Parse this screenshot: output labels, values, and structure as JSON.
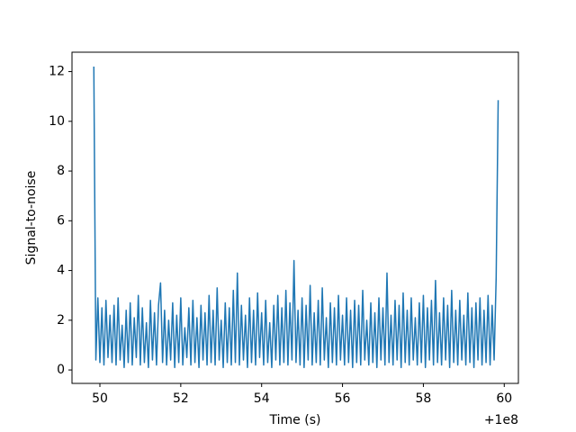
{
  "chart_data": {
    "type": "line",
    "xlabel": "Time (s)",
    "ylabel": "Signal-to-noise",
    "x_offset_label": "+1e8",
    "x": [
      100000049.85,
      100000049.9,
      100000049.95,
      100000050,
      100000050.05,
      100000050.1,
      100000050.15,
      100000050.2,
      100000050.25,
      100000050.3,
      100000050.35,
      100000050.4,
      100000050.45,
      100000050.5,
      100000050.55,
      100000050.6,
      100000050.65,
      100000050.7,
      100000050.75,
      100000050.8,
      100000050.85,
      100000050.9,
      100000050.95,
      100000051,
      100000051.05,
      100000051.1,
      100000051.15,
      100000051.2,
      100000051.25,
      100000051.3,
      100000051.35,
      100000051.4,
      100000051.45,
      100000051.5,
      100000051.55,
      100000051.6,
      100000051.65,
      100000051.7,
      100000051.75,
      100000051.8,
      100000051.85,
      100000051.9,
      100000051.95,
      100000052,
      100000052.05,
      100000052.1,
      100000052.15,
      100000052.2,
      100000052.25,
      100000052.3,
      100000052.35,
      100000052.4,
      100000052.45,
      100000052.5,
      100000052.55,
      100000052.6,
      100000052.65,
      100000052.7,
      100000052.75,
      100000052.8,
      100000052.85,
      100000052.9,
      100000052.95,
      100000053,
      100000053.05,
      100000053.1,
      100000053.15,
      100000053.2,
      100000053.25,
      100000053.3,
      100000053.35,
      100000053.4,
      100000053.45,
      100000053.5,
      100000053.55,
      100000053.6,
      100000053.65,
      100000053.7,
      100000053.75,
      100000053.8,
      100000053.85,
      100000053.9,
      100000053.95,
      100000054,
      100000054.05,
      100000054.1,
      100000054.15,
      100000054.2,
      100000054.25,
      100000054.3,
      100000054.35,
      100000054.4,
      100000054.45,
      100000054.5,
      100000054.55,
      100000054.6,
      100000054.65,
      100000054.7,
      100000054.75,
      100000054.8,
      100000054.85,
      100000054.9,
      100000054.95,
      100000055,
      100000055.05,
      100000055.1,
      100000055.15,
      100000055.2,
      100000055.25,
      100000055.3,
      100000055.35,
      100000055.4,
      100000055.45,
      100000055.5,
      100000055.55,
      100000055.6,
      100000055.65,
      100000055.7,
      100000055.75,
      100000055.8,
      100000055.85,
      100000055.9,
      100000055.95,
      100000056,
      100000056.05,
      100000056.1,
      100000056.15,
      100000056.2,
      100000056.25,
      100000056.3,
      100000056.35,
      100000056.4,
      100000056.45,
      100000056.5,
      100000056.55,
      100000056.6,
      100000056.65,
      100000056.7,
      100000056.75,
      100000056.8,
      100000056.85,
      100000056.9,
      100000056.95,
      100000057,
      100000057.05,
      100000057.1,
      100000057.15,
      100000057.2,
      100000057.25,
      100000057.3,
      100000057.35,
      100000057.4,
      100000057.45,
      100000057.5,
      100000057.55,
      100000057.6,
      100000057.65,
      100000057.7,
      100000057.75,
      100000057.8,
      100000057.85,
      100000057.9,
      100000057.95,
      100000058,
      100000058.05,
      100000058.1,
      100000058.15,
      100000058.2,
      100000058.25,
      100000058.3,
      100000058.35,
      100000058.4,
      100000058.45,
      100000058.5,
      100000058.55,
      100000058.6,
      100000058.65,
      100000058.7,
      100000058.75,
      100000058.8,
      100000058.85,
      100000058.9,
      100000058.95,
      100000059,
      100000059.05,
      100000059.1,
      100000059.15,
      100000059.2,
      100000059.25,
      100000059.3,
      100000059.35,
      100000059.4,
      100000059.45,
      100000059.5,
      100000059.55,
      100000059.6,
      100000059.65,
      100000059.7,
      100000059.75,
      100000059.8,
      100000059.85
    ],
    "series": [
      {
        "color": "#1f77b4",
        "values": [
          12.2,
          0.4,
          2.9,
          0.3,
          2.5,
          0.2,
          2.8,
          0.5,
          2.2,
          0.3,
          2.6,
          0.2,
          2.9,
          0.4,
          1.8,
          0.1,
          2.4,
          0.3,
          2.7,
          0.2,
          2.1,
          0.5,
          3.0,
          0.2,
          2.5,
          0.3,
          1.9,
          0.1,
          2.8,
          0.4,
          2.3,
          0.2,
          2.6,
          3.5,
          0.3,
          2.4,
          0.2,
          2.0,
          0.4,
          2.7,
          0.1,
          2.2,
          0.3,
          2.9,
          0.2,
          1.7,
          0.5,
          2.5,
          0.2,
          2.8,
          0.3,
          2.1,
          0.1,
          2.6,
          0.4,
          2.3,
          0.2,
          3.0,
          0.3,
          2.4,
          0.2,
          3.3,
          0.4,
          2.0,
          0.1,
          2.7,
          0.3,
          2.5,
          0.2,
          3.2,
          0.3,
          3.9,
          0.2,
          2.6,
          0.4,
          2.2,
          0.1,
          2.9,
          0.3,
          2.4,
          0.2,
          3.1,
          0.5,
          2.3,
          0.2,
          2.8,
          0.3,
          1.9,
          0.1,
          2.6,
          0.4,
          3.0,
          0.2,
          2.5,
          0.3,
          3.2,
          0.2,
          2.7,
          0.4,
          4.4,
          0.3,
          2.4,
          0.2,
          2.9,
          0.1,
          2.6,
          0.4,
          3.4,
          0.2,
          2.3,
          0.3,
          2.8,
          0.2,
          3.3,
          0.4,
          2.1,
          0.1,
          2.7,
          0.3,
          2.5,
          0.2,
          3.0,
          0.4,
          2.2,
          0.2,
          2.9,
          0.3,
          2.4,
          0.1,
          2.8,
          0.3,
          2.6,
          0.2,
          3.2,
          0.4,
          2.0,
          0.2,
          2.7,
          0.3,
          2.3,
          0.1,
          2.9,
          0.4,
          2.5,
          0.2,
          3.9,
          0.3,
          2.2,
          0.2,
          2.8,
          0.4,
          2.6,
          0.1,
          3.1,
          0.3,
          2.4,
          0.2,
          2.9,
          0.4,
          2.1,
          0.2,
          2.7,
          0.3,
          3.0,
          0.1,
          2.5,
          0.4,
          2.8,
          0.2,
          3.6,
          0.3,
          2.3,
          0.2,
          2.9,
          0.4,
          2.6,
          0.1,
          3.2,
          0.3,
          2.4,
          0.2,
          2.8,
          0.4,
          2.2,
          0.2,
          3.1,
          0.3,
          2.5,
          0.1,
          2.7,
          0.4,
          2.9,
          0.2,
          2.4,
          0.3,
          3.0,
          0.2,
          2.6,
          0.4,
          3.7,
          10.85
        ]
      }
    ],
    "xlim": [
      100000049.31,
      100000060.35
    ],
    "xticks": [
      {
        "value": 100000050,
        "label": "50"
      },
      {
        "value": 100000052,
        "label": "52"
      },
      {
        "value": 100000054,
        "label": "54"
      },
      {
        "value": 100000056,
        "label": "56"
      },
      {
        "value": 100000058,
        "label": "58"
      },
      {
        "value": 100000060,
        "label": "60"
      }
    ],
    "ylim": [
      -0.54,
      12.78
    ],
    "yticks": [
      0,
      2,
      4,
      6,
      8,
      10,
      12
    ],
    "grid": false
  }
}
